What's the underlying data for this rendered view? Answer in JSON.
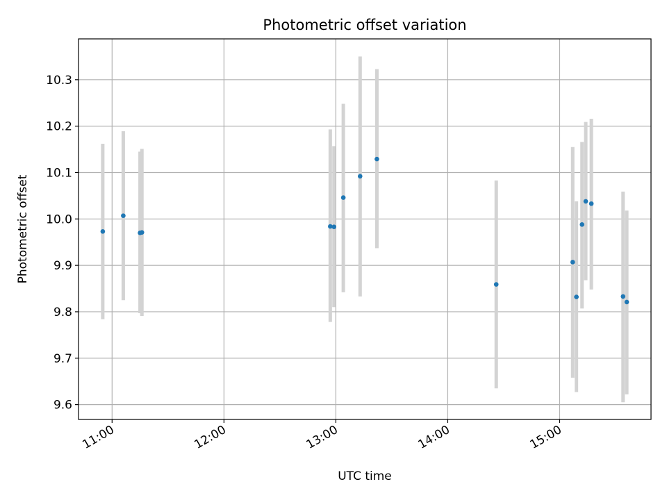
{
  "chart_data": {
    "type": "scatter",
    "title": "Photometric offset variation",
    "xlabel": "UTC time",
    "ylabel": "Photometric offset",
    "xlim": [
      "10:42",
      "15:49"
    ],
    "ylim": [
      9.568,
      10.388
    ],
    "xticks": [
      "11:00",
      "12:00",
      "13:00",
      "14:00",
      "15:00"
    ],
    "yticks": [
      9.6,
      9.7,
      9.8,
      9.9,
      10.0,
      10.1,
      10.2,
      10.3
    ],
    "ytick_labels": [
      "9.6",
      "9.7",
      "9.8",
      "9.9",
      "10.0",
      "10.1",
      "10.2",
      "10.3"
    ],
    "grid": true,
    "legend": "none",
    "colors": {
      "point": "#1f77b4",
      "errorbar": "#d3d3d3",
      "grid": "#b0b0b0"
    },
    "series": [
      {
        "points": [
          {
            "x": "10:55",
            "y": 9.973,
            "lo": 9.784,
            "hi": 10.162
          },
          {
            "x": "11:06",
            "y": 10.007,
            "lo": 9.825,
            "hi": 10.189
          },
          {
            "x": "11:15",
            "y": 9.97,
            "lo": 9.797,
            "hi": 10.145
          },
          {
            "x": "11:16",
            "y": 9.971,
            "lo": 9.791,
            "hi": 10.151
          },
          {
            "x": "12:57",
            "y": 9.984,
            "lo": 9.778,
            "hi": 10.193
          },
          {
            "x": "12:59",
            "y": 9.983,
            "lo": 9.81,
            "hi": 10.157
          },
          {
            "x": "13:04",
            "y": 10.046,
            "lo": 9.842,
            "hi": 10.248
          },
          {
            "x": "13:13",
            "y": 10.092,
            "lo": 9.833,
            "hi": 10.35
          },
          {
            "x": "13:22",
            "y": 10.129,
            "lo": 9.937,
            "hi": 10.323
          },
          {
            "x": "14:26",
            "y": 9.859,
            "lo": 9.635,
            "hi": 10.083
          },
          {
            "x": "15:07",
            "y": 9.907,
            "lo": 9.658,
            "hi": 10.155
          },
          {
            "x": "15:09",
            "y": 9.832,
            "lo": 9.627,
            "hi": 10.038
          },
          {
            "x": "15:12",
            "y": 9.988,
            "lo": 9.807,
            "hi": 10.166
          },
          {
            "x": "15:14",
            "y": 10.038,
            "lo": 9.868,
            "hi": 10.209
          },
          {
            "x": "15:17",
            "y": 10.033,
            "lo": 9.848,
            "hi": 10.216
          },
          {
            "x": "15:34",
            "y": 9.833,
            "lo": 9.605,
            "hi": 10.059
          },
          {
            "x": "15:36",
            "y": 9.821,
            "lo": 9.622,
            "hi": 10.018
          }
        ]
      }
    ]
  }
}
